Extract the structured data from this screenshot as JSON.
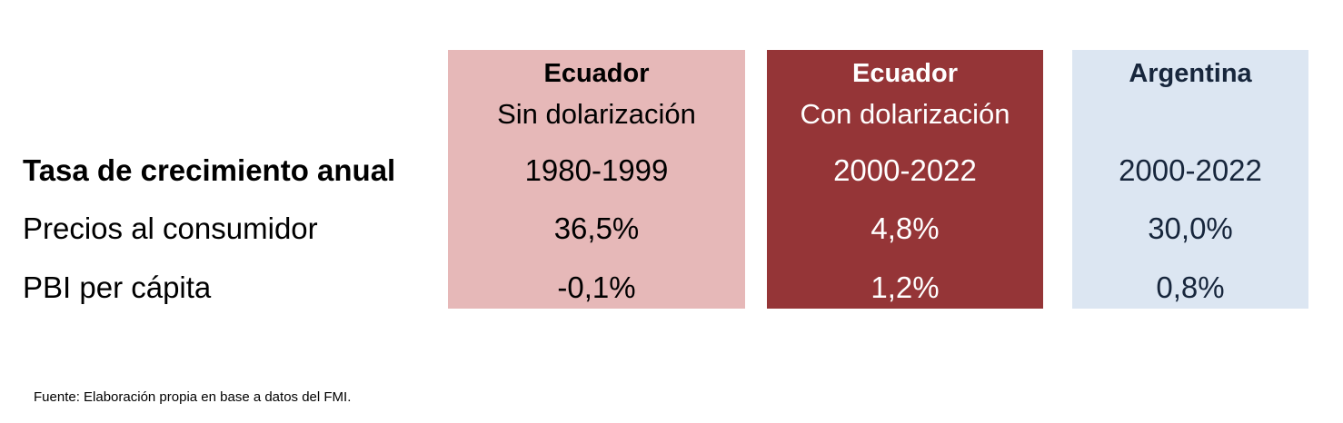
{
  "row_labels": {
    "header": "Tasa de crecimiento anual",
    "row1": "Precios al consumidor",
    "row2": "PBI per cápita"
  },
  "columns": [
    {
      "country": "Ecuador",
      "subtitle": "Sin dolarización",
      "period": "1980-1999",
      "precios": "36,5%",
      "pbi": "-0,1%",
      "background": "#e6b8b8",
      "text_color": "#000000"
    },
    {
      "country": "Ecuador",
      "subtitle": "Con dolarización",
      "period": "2000-2022",
      "precios": "4,8%",
      "pbi": "1,2%",
      "background": "#953537",
      "text_color": "#ffffff"
    },
    {
      "country": "Argentina",
      "subtitle": "",
      "period": "2000-2022",
      "precios": "30,0%",
      "pbi": "0,8%",
      "background": "#dce6f2",
      "text_color": "#17263c"
    }
  ],
  "source": "Fuente: Elaboración propia en base a datos del FMI."
}
